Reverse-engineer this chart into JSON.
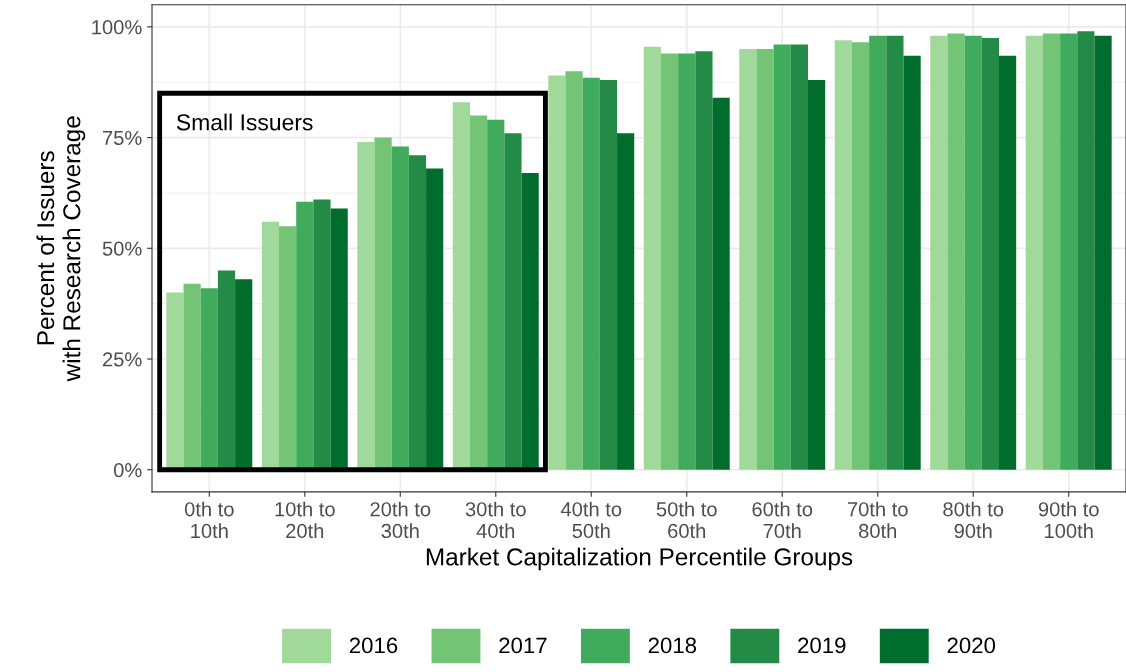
{
  "chart_data": {
    "type": "bar",
    "xlabel": "Market Capitalization Percentile Groups",
    "ylabel": "Percent of Issuers\nwith Research Coverage",
    "categories": [
      "0th to\n10th",
      "10th to\n20th",
      "20th to\n30th",
      "30th to\n40th",
      "40th to\n50th",
      "50th to\n60th",
      "60th to\n70th",
      "70th to\n80th",
      "80th to\n90th",
      "90th to\n100th"
    ],
    "series": [
      {
        "name": "2016",
        "color": "#a1d99b",
        "values": [
          40,
          56,
          74,
          83,
          89,
          95.5,
          95,
          97,
          98,
          98
        ]
      },
      {
        "name": "2017",
        "color": "#74c476",
        "values": [
          42,
          55,
          75,
          80,
          90,
          94,
          95,
          96.5,
          98.5,
          98.5
        ]
      },
      {
        "name": "2018",
        "color": "#41ab5d",
        "values": [
          41,
          60.5,
          73,
          79,
          88.5,
          94,
          96,
          98,
          98,
          98.5
        ]
      },
      {
        "name": "2019",
        "color": "#238b45",
        "values": [
          45,
          61,
          71,
          76,
          88,
          94.5,
          96,
          98,
          97.5,
          99
        ]
      },
      {
        "name": "2020",
        "color": "#006d2c",
        "values": [
          43,
          59,
          68,
          67,
          76,
          84,
          88,
          93.5,
          93.5,
          98
        ]
      }
    ],
    "ylim": [
      -5,
      105
    ],
    "yticks": [
      {
        "value": 0,
        "label": "0%"
      },
      {
        "value": 25,
        "label": "25%"
      },
      {
        "value": 50,
        "label": "50%"
      },
      {
        "value": 75,
        "label": "75%"
      },
      {
        "value": 100,
        "label": "100%"
      }
    ],
    "grid": true,
    "legend": "bottom",
    "annotations": [
      "Small Issuers"
    ]
  }
}
